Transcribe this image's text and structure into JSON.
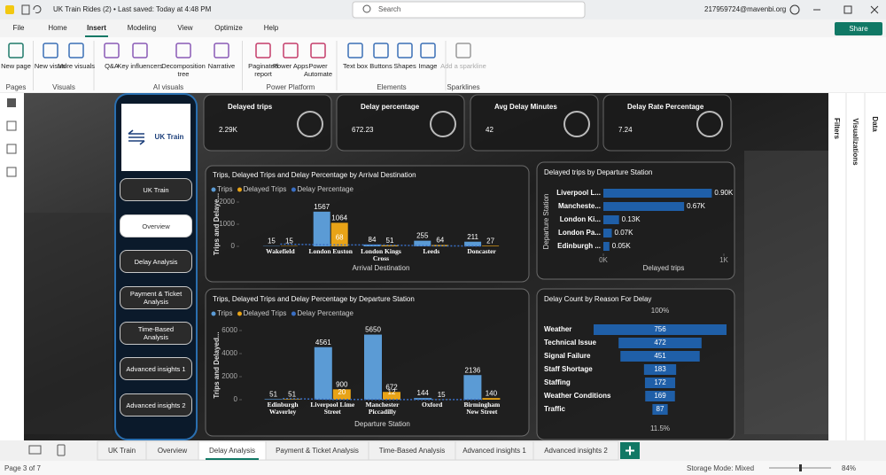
{
  "titlebar": {
    "file_title": "UK Train Rides (2) • Last saved: Today at 4:48 PM",
    "search": "Search",
    "account": "217959724@mavenbi.org"
  },
  "menu": {
    "items": [
      "File",
      "Home",
      "Insert",
      "Modeling",
      "View",
      "Optimize",
      "Help"
    ],
    "active": 2,
    "share": "Share"
  },
  "ribbon": {
    "groups": [
      {
        "label": "Pages",
        "buttons": [
          "New page"
        ]
      },
      {
        "label": "Visuals",
        "buttons": [
          "New visual",
          "More visuals"
        ]
      },
      {
        "label": "AI visuals",
        "buttons": [
          "Q&A",
          "Key influencers",
          "Decomposition tree",
          "Narrative"
        ]
      },
      {
        "label": "Power Platform",
        "buttons": [
          "Paginated report",
          "Power Apps",
          "Power Automate"
        ]
      },
      {
        "label": "Elements",
        "buttons": [
          "Text box",
          "Buttons",
          "Shapes",
          "Image"
        ]
      },
      {
        "label": "Sparklines",
        "buttons": [
          "Add a sparkline"
        ]
      }
    ]
  },
  "panes": [
    "Filters",
    "Visualizations",
    "Data"
  ],
  "nav": {
    "logo": "UK Train",
    "buttons": [
      "UK Train",
      "Overview",
      "Delay Analysis",
      "Payment & Ticket Analysis",
      "Time-Based Analysis",
      "Advanced insights 1",
      "Advanced insights 2"
    ],
    "active": 1
  },
  "kpis": [
    {
      "label": "Delayed trips",
      "value": "2.29K"
    },
    {
      "label": "Delay percentage",
      "value": "672.23"
    },
    {
      "label": "Avg Delay Minutes",
      "value": "42"
    },
    {
      "label": "Delay Rate Percentage",
      "value": "7.24"
    }
  ],
  "chart_data": [
    {
      "type": "combo",
      "title": "Trips, Delayed Trips and Delay Percentage by Arrival Destination",
      "y_label": "Trips and Delaye...",
      "x_label": "Arrival Destination",
      "categories": [
        "Wakefield",
        "London Euston",
        "London Kings Cross",
        "Leeds",
        "Doncaster"
      ],
      "series": [
        {
          "name": "Trips",
          "type": "bar",
          "color": "#5b9bd5",
          "values": [
            15,
            1567,
            84,
            255,
            211
          ]
        },
        {
          "name": "Delayed Trips",
          "type": "bar",
          "color": "#e8a317",
          "values": [
            15,
            1064,
            51,
            64,
            27
          ]
        },
        {
          "name": "Delay Percentage",
          "type": "line",
          "color": "#3a6fc4",
          "values": [
            100,
            68,
            61,
            25,
            13
          ],
          "value_labels": [
            null,
            "68",
            null,
            null,
            null
          ]
        }
      ],
      "ylim": [
        0,
        2000
      ],
      "yticks": [
        0,
        1000,
        2000
      ]
    },
    {
      "type": "hbar",
      "title": "Delayed trips by Departure Station",
      "y_label": "Departure Station",
      "x_label": "Delayed trips",
      "categories": [
        "Liverpool L...",
        "Mancheste...",
        "London Ki...",
        "London Pa...",
        "Edinburgh ..."
      ],
      "values": [
        900,
        670,
        130,
        70,
        50
      ],
      "value_labels": [
        "0.90K",
        "0.67K",
        "0.13K",
        "0.07K",
        "0.05K"
      ],
      "color": "#1f5fa8",
      "xlim": [
        0,
        1000
      ],
      "xticks": [
        {
          "value": 0,
          "label": "0K"
        },
        {
          "value": 1000,
          "label": "1K"
        }
      ]
    },
    {
      "type": "combo",
      "title": "Trips, Delayed Trips and Delay Percentage by Departure Station",
      "y_label": "Trips and Delayed...",
      "x_label": "Departure Station",
      "categories": [
        "Edinburgh Waverley",
        "Liverpool Lime Street",
        "Manchester Piccadilly",
        "Oxford",
        "Birmingham New Street"
      ],
      "series": [
        {
          "name": "Trips",
          "type": "bar",
          "color": "#5b9bd5",
          "values": [
            51,
            4561,
            5650,
            144,
            2136
          ]
        },
        {
          "name": "Delayed Trips",
          "type": "bar",
          "color": "#e8a317",
          "values": [
            51,
            900,
            672,
            15,
            140
          ]
        },
        {
          "name": "Delay Percentage",
          "type": "line",
          "color": "#3a6fc4",
          "values": [
            100,
            20,
            12,
            10,
            7
          ],
          "value_labels": [
            null,
            "20",
            "12",
            null,
            null
          ]
        }
      ],
      "ylim": [
        0,
        6000
      ],
      "yticks": [
        0,
        2000,
        4000,
        6000
      ]
    },
    {
      "type": "funnel",
      "title": "Delay Count by Reason For Delay",
      "categories": [
        "Weather",
        "Technical Issue",
        "Signal Failure",
        "Staff Shortage",
        "Staffing",
        "Weather Conditions",
        "Traffic"
      ],
      "values": [
        756,
        472,
        451,
        183,
        172,
        169,
        87
      ],
      "color": "#1f5fa8",
      "top_label": "100%",
      "bottom_label": "11.5%"
    }
  ],
  "tabs": {
    "items": [
      "UK Train",
      "Overview",
      "Delay Analysis",
      "Payment & Ticket Analysis",
      "Time-Based Analysis",
      "Advanced insights 1",
      "Advanced insights 2"
    ],
    "active": 2
  },
  "status": {
    "page": "Page 3 of 7",
    "storage": "Storage Mode: Mixed",
    "zoom": "84%"
  }
}
